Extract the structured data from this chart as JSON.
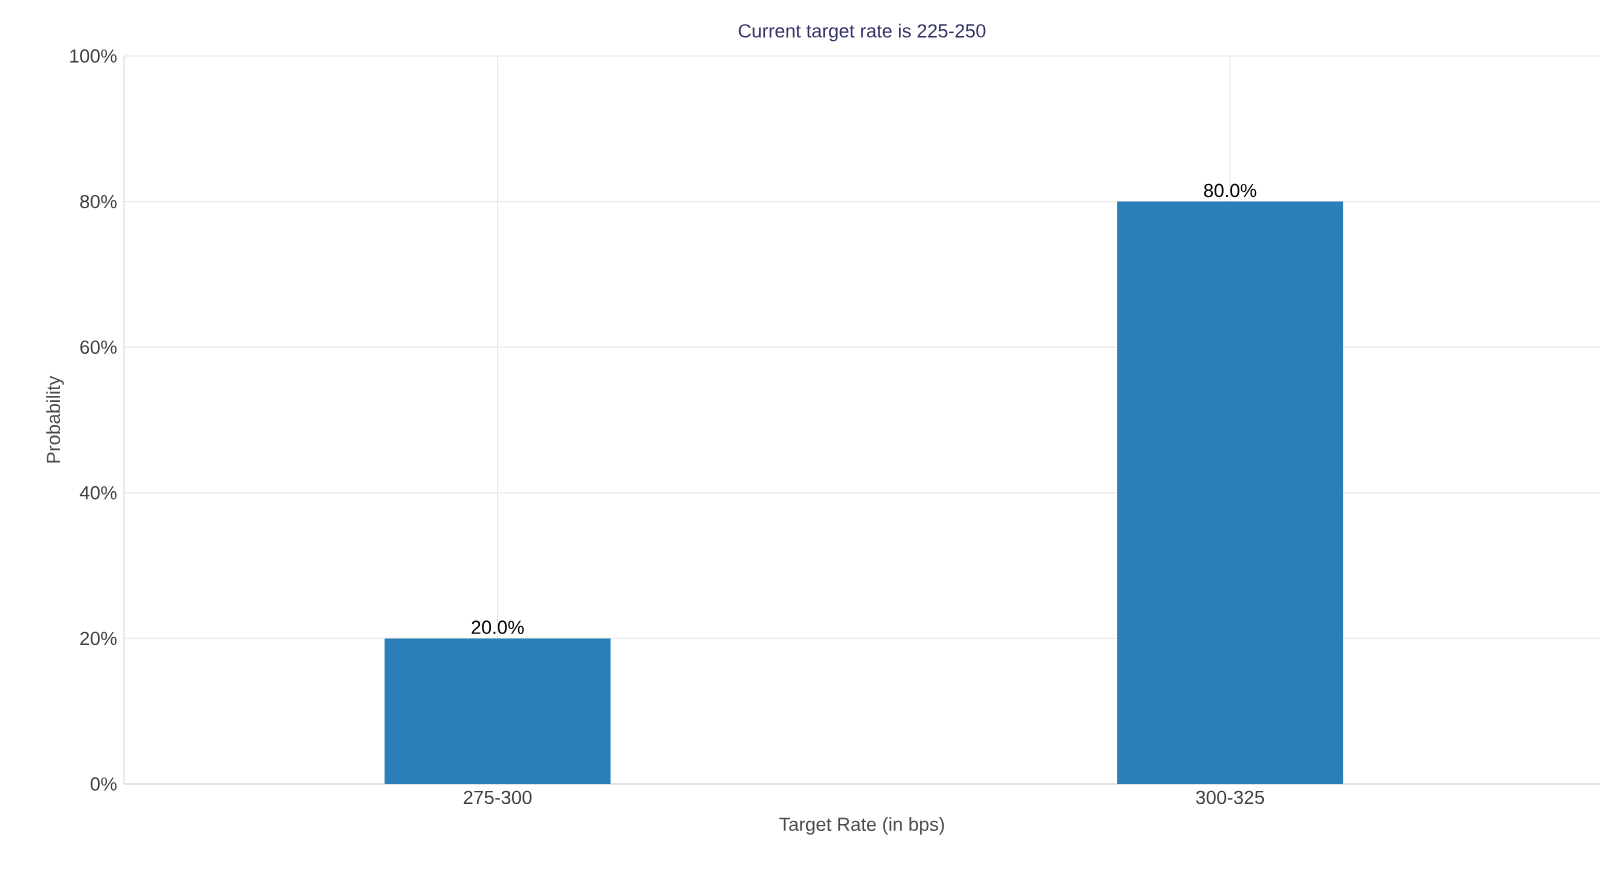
{
  "chart_data": {
    "type": "bar",
    "title": "Current target rate is 225-250",
    "xlabel": "Target Rate (in bps)",
    "ylabel": "Probability",
    "categories": [
      "275-300",
      "300-325"
    ],
    "values": [
      20,
      80
    ],
    "value_labels": [
      "20.0%",
      "80.0%"
    ],
    "color": "#2a7fb9",
    "ylim": [
      0,
      100
    ],
    "yticks": [
      {
        "value": 0,
        "label": "0%"
      },
      {
        "value": 20,
        "label": "20%"
      },
      {
        "value": 40,
        "label": "40%"
      },
      {
        "value": 60,
        "label": "60%"
      },
      {
        "value": 80,
        "label": "80%"
      },
      {
        "value": 100,
        "label": "100%"
      }
    ],
    "grid": true
  }
}
